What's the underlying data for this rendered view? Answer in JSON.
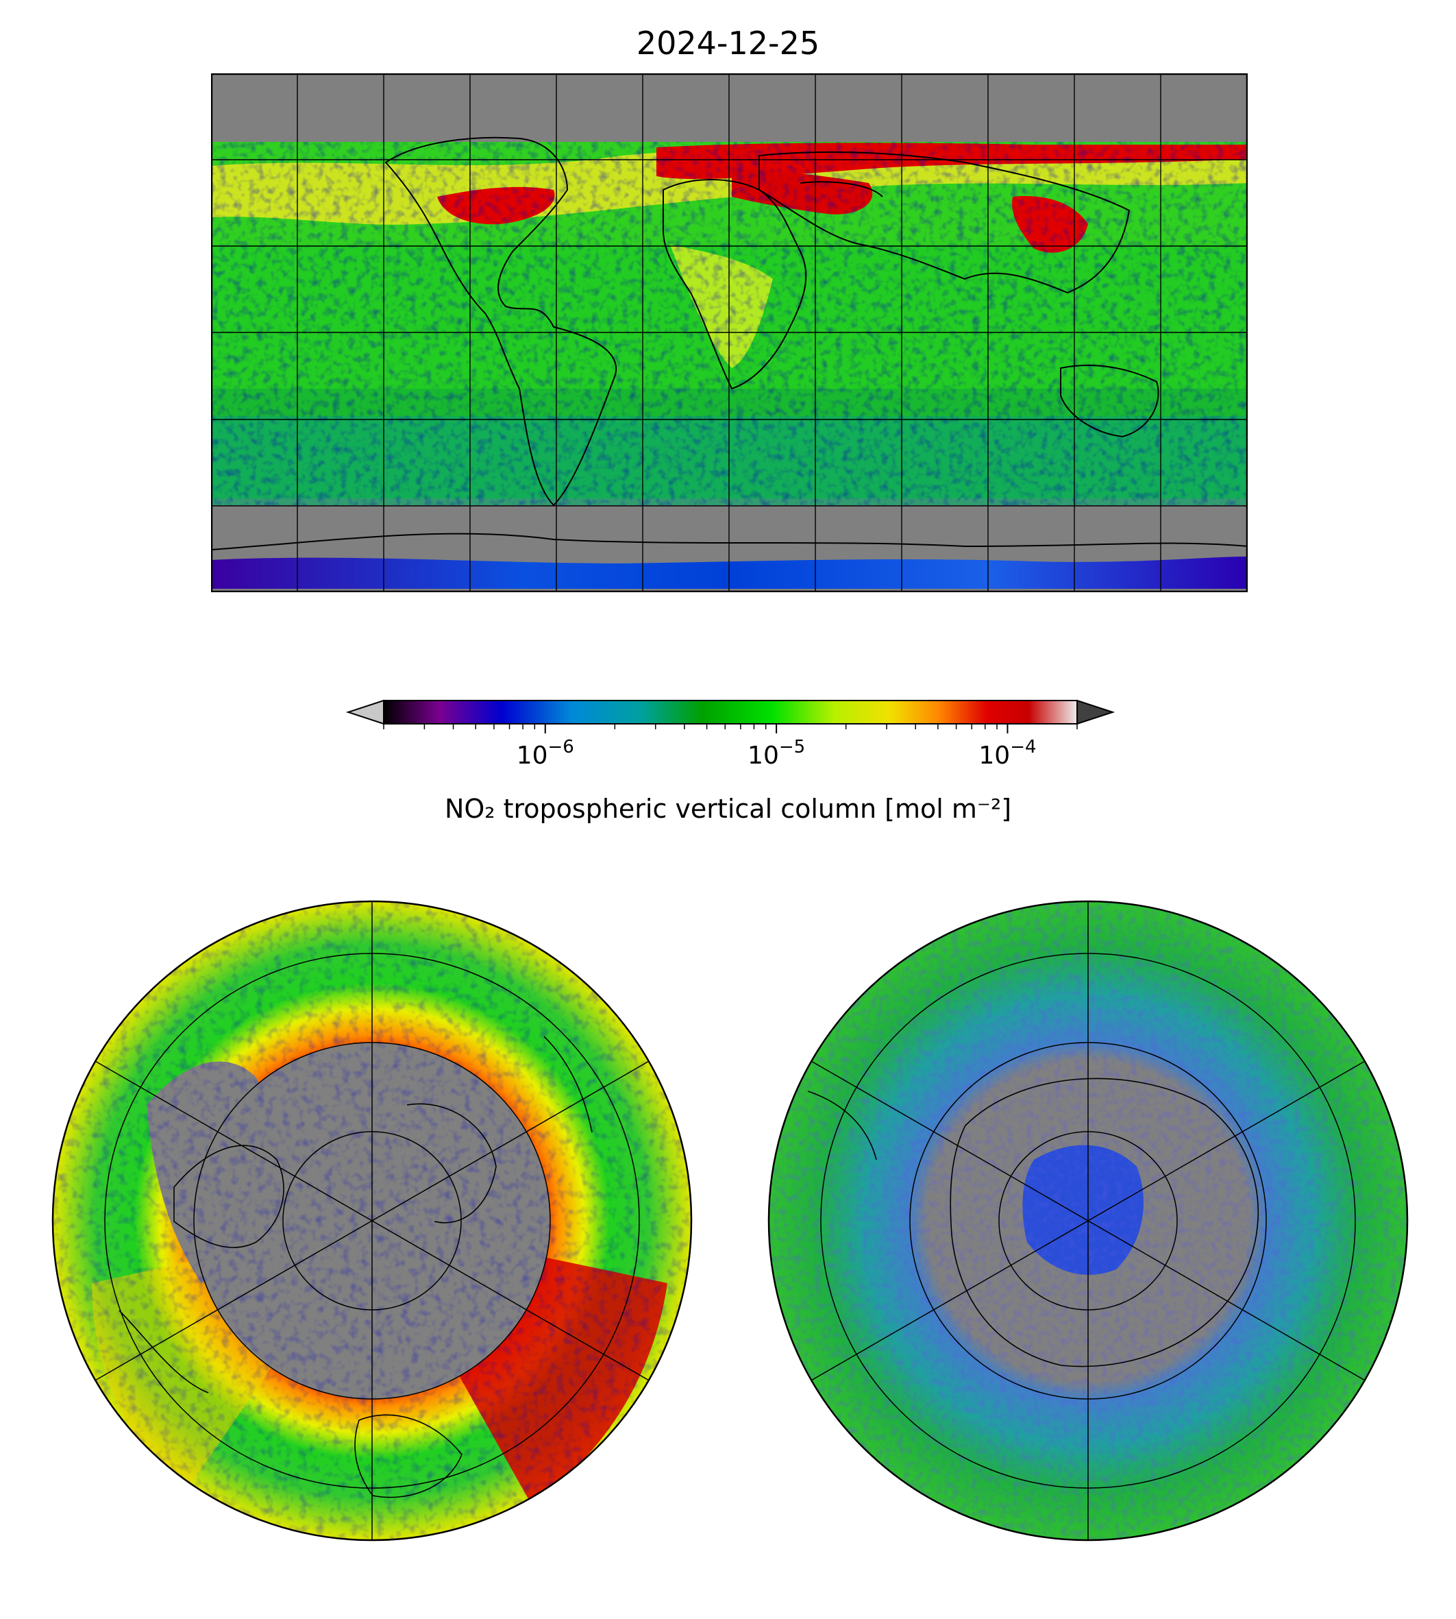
{
  "title": "2024-12-25",
  "colorbar": {
    "label": "NO₂ tropospheric vertical column [mol m⁻²]",
    "scale": "log",
    "vmin": 2e-07,
    "vmax": 0.0002,
    "extend": "both",
    "colormap": "nipy_spectral",
    "ticks": [
      {
        "value": 1e-06,
        "base": "10",
        "exp": "−6"
      },
      {
        "value": 1e-05,
        "base": "10",
        "exp": "−5"
      },
      {
        "value": 0.0001,
        "base": "10",
        "exp": "−4"
      }
    ],
    "colors": {
      "under": "#c8c8c8",
      "over": "#404040",
      "stops": [
        "#000000",
        "#7a0090",
        "#0000d0",
        "#0088d8",
        "#00a0a0",
        "#00a000",
        "#00e000",
        "#b8f000",
        "#f0e000",
        "#ff8800",
        "#e00000",
        "#c80000",
        "#ececec"
      ]
    }
  },
  "maps": {
    "world": {
      "projection": "plate-carree",
      "extent": [
        -180,
        180,
        -90,
        90
      ],
      "gridline_spacing_deg": 30,
      "land_color": "#808080"
    },
    "north": {
      "projection": "north-polar-stereo",
      "min_lat": 20
    },
    "south": {
      "projection": "south-polar-stereo",
      "max_lat": -20
    }
  }
}
